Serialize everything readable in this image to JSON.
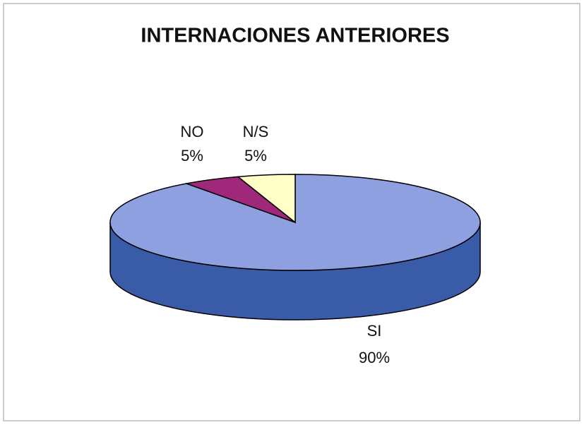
{
  "chart_data": {
    "type": "pie",
    "title": "INTERNACIONES ANTERIORES",
    "categories": [
      "SI",
      "NO",
      "N/S"
    ],
    "values": [
      90,
      5,
      5
    ],
    "value_labels": [
      "90%",
      "5%",
      "5%"
    ],
    "colors": [
      "#8fa0e0",
      "#a0287a",
      "#ffffc8"
    ],
    "side_color": "#3a5ca8"
  }
}
